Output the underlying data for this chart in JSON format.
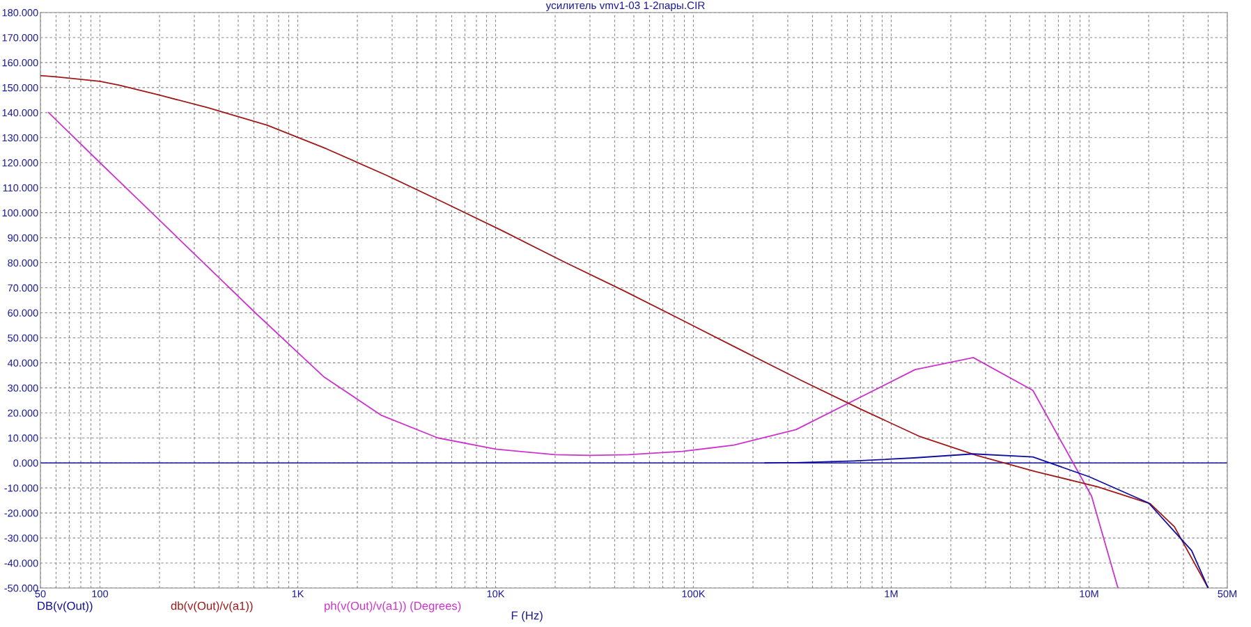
{
  "chart_data": {
    "type": "line",
    "title": "усилитель vmv1-03 1-2пары.CIR",
    "xlabel": "F (Hz)",
    "log": "x",
    "grid": true,
    "line_style": "solid",
    "xlim": [
      50,
      50000000
    ],
    "xticks": [
      50,
      100,
      {
        "value": 1000,
        "label": "1K"
      },
      {
        "value": 10000,
        "label": "10K"
      },
      {
        "value": 100000,
        "label": "100K"
      },
      {
        "value": 1000000,
        "label": "1M"
      },
      {
        "value": 10000000,
        "label": "10M"
      },
      {
        "value": 50000000,
        "label": "50M"
      }
    ],
    "ylim": [
      -50,
      180
    ],
    "yticks": [
      {
        "value": -50,
        "label": "-50.000"
      },
      {
        "value": -40,
        "label": "-40.000"
      },
      {
        "value": -30,
        "label": "-30.000"
      },
      {
        "value": -20,
        "label": "-20.000"
      },
      {
        "value": -10,
        "label": "-10.000"
      },
      {
        "value": 0,
        "label": "0.000"
      },
      {
        "value": 10,
        "label": "10.000"
      },
      {
        "value": 20,
        "label": "20.000"
      },
      {
        "value": 30,
        "label": "30.000"
      },
      {
        "value": 40,
        "label": "40.000"
      },
      {
        "value": 50,
        "label": "50.000"
      },
      {
        "value": 60,
        "label": "60.000"
      },
      {
        "value": 70,
        "label": "70.000"
      },
      {
        "value": 80,
        "label": "80.000"
      },
      {
        "value": 90,
        "label": "90.000"
      },
      {
        "value": 100,
        "label": "100.000"
      },
      {
        "value": 110,
        "label": "110.000"
      },
      {
        "value": 120,
        "label": "120.000"
      },
      {
        "value": 130,
        "label": "130.000"
      },
      {
        "value": 140,
        "label": "140.000"
      },
      {
        "value": 150,
        "label": "150.000"
      },
      {
        "value": 160,
        "label": "160.000"
      },
      {
        "value": 170,
        "label": "170.000"
      },
      {
        "value": 180,
        "label": "180.000"
      }
    ],
    "ref_lines": [
      {
        "axis": "y",
        "value": 0,
        "color": "#1010a0"
      }
    ],
    "series": [
      {
        "name": "DB(v(Out))",
        "color": "#1010a0",
        "x": [
          230000,
          330000,
          650000,
          1300000,
          2600000,
          5200000,
          10000000,
          20000000,
          26000000,
          33000000,
          40000000
        ],
        "values": [
          0,
          0.1,
          0.8,
          2,
          3.6,
          2.4,
          -5.5,
          -16,
          -26,
          -35,
          -50
        ]
      },
      {
        "name": "db(v(Out)/v(a1))",
        "color": "#a01818",
        "x": [
          50,
          60,
          100,
          125,
          200,
          350,
          700,
          1400,
          2800,
          5500,
          11000,
          22000,
          44000,
          88000,
          175000,
          350000,
          700000,
          1400000,
          2700000,
          5400000,
          11000000,
          20400000,
          27000000,
          40000000
        ],
        "values": [
          154.8,
          154.3,
          152.5,
          151,
          147,
          142,
          135,
          125.5,
          115,
          104,
          92.5,
          80.5,
          69,
          57,
          45,
          33,
          21.5,
          10.5,
          3,
          -3.5,
          -9.5,
          -16.3,
          -25.5,
          -50
        ]
      },
      {
        "name": "ph(v(Out)/v(a1)) (Degrees)",
        "color": "#cc33cc",
        "x": [
          55,
          100,
          200,
          400,
          610,
          1350,
          2650,
          5100,
          10000,
          20000,
          30000,
          47000,
          88000,
          160000,
          330000,
          1320000,
          2600000,
          5200000,
          10300000,
          14000000
        ],
        "values": [
          140,
          120,
          97,
          74,
          60,
          34.5,
          19,
          10,
          5.5,
          3.3,
          3.0,
          3.3,
          4.6,
          7.1,
          13.3,
          37.3,
          42.1,
          29,
          -13.3,
          -50
        ]
      }
    ]
  }
}
